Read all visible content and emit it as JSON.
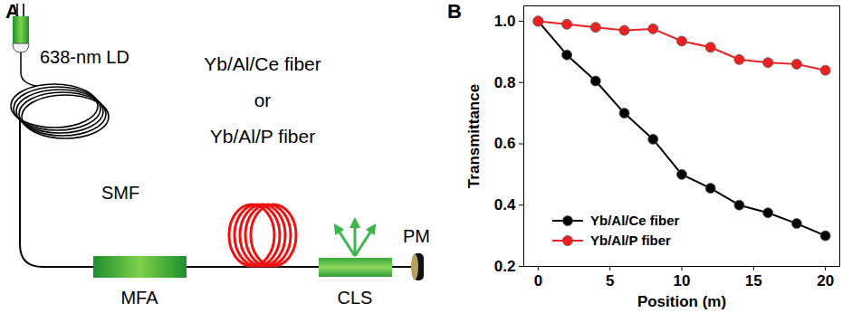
{
  "diagram": {
    "panel_label": "A",
    "source": "638-nm LD",
    "components": [
      "SMF",
      "MFA",
      "CLS",
      "PM"
    ],
    "fiber_under_test": [
      "Yb/Al/Ce fiber",
      "or",
      "Yb/Al/P fiber"
    ]
  },
  "chart_data": {
    "type": "line",
    "panel_label": "B",
    "x_label": "Position (m)",
    "y_label": "Transmittance",
    "x": [
      0,
      2,
      4,
      6,
      8,
      10,
      12,
      14,
      16,
      18,
      20
    ],
    "series": [
      {
        "name": "Yb/Al/Ce fiber",
        "color": "#000000",
        "marker": "circle",
        "line_style": "solid",
        "values": [
          1.0,
          0.89,
          0.805,
          0.7,
          0.615,
          0.5,
          0.455,
          0.4,
          0.375,
          0.34,
          0.3
        ]
      },
      {
        "name": "Yb/Al/P fiber",
        "color": "#f02020",
        "marker": "circle",
        "line_style": "solid",
        "values": [
          1.0,
          0.99,
          0.98,
          0.97,
          0.975,
          0.935,
          0.915,
          0.875,
          0.865,
          0.86,
          0.84
        ]
      }
    ],
    "xlim": [
      -1,
      21
    ],
    "xticks": [
      0,
      5,
      10,
      15,
      20
    ],
    "ylim": [
      0.2,
      1.05
    ],
    "yticks": [
      0.2,
      0.4,
      0.6,
      0.8,
      {
        "value": 1,
        "label": "1.0"
      }
    ],
    "legend": "lower left",
    "grid": false
  }
}
